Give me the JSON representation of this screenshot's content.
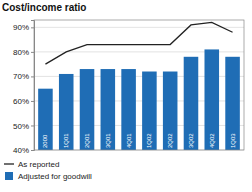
{
  "chart_data": {
    "type": "bar",
    "title": "Cost/income ratio",
    "categories": [
      "2000",
      "1Q01",
      "2Q01",
      "3Q01",
      "4Q01",
      "1Q02",
      "2Q02",
      "3Q02",
      "4Q02",
      "1Q03"
    ],
    "series": [
      {
        "name": "As reported",
        "type": "line",
        "color": "#222222",
        "values": [
          75,
          80,
          83,
          83,
          83,
          83,
          83,
          91,
          92,
          88
        ]
      },
      {
        "name": "Adjusted for goodwill",
        "type": "bar",
        "color": "#1f6db5",
        "values": [
          65,
          71,
          73,
          73,
          73,
          72,
          72,
          78,
          81,
          78
        ]
      }
    ],
    "ylim": [
      40,
      93
    ],
    "yticks": [
      {
        "value": 40,
        "label": "40%"
      },
      {
        "value": 50,
        "label": "50%"
      },
      {
        "value": 60,
        "label": "60%"
      },
      {
        "value": 70,
        "label": "70%"
      },
      {
        "value": 80,
        "label": "80%"
      },
      {
        "value": 90,
        "label": "90%"
      }
    ],
    "grid": true,
    "legend": "bottom"
  }
}
